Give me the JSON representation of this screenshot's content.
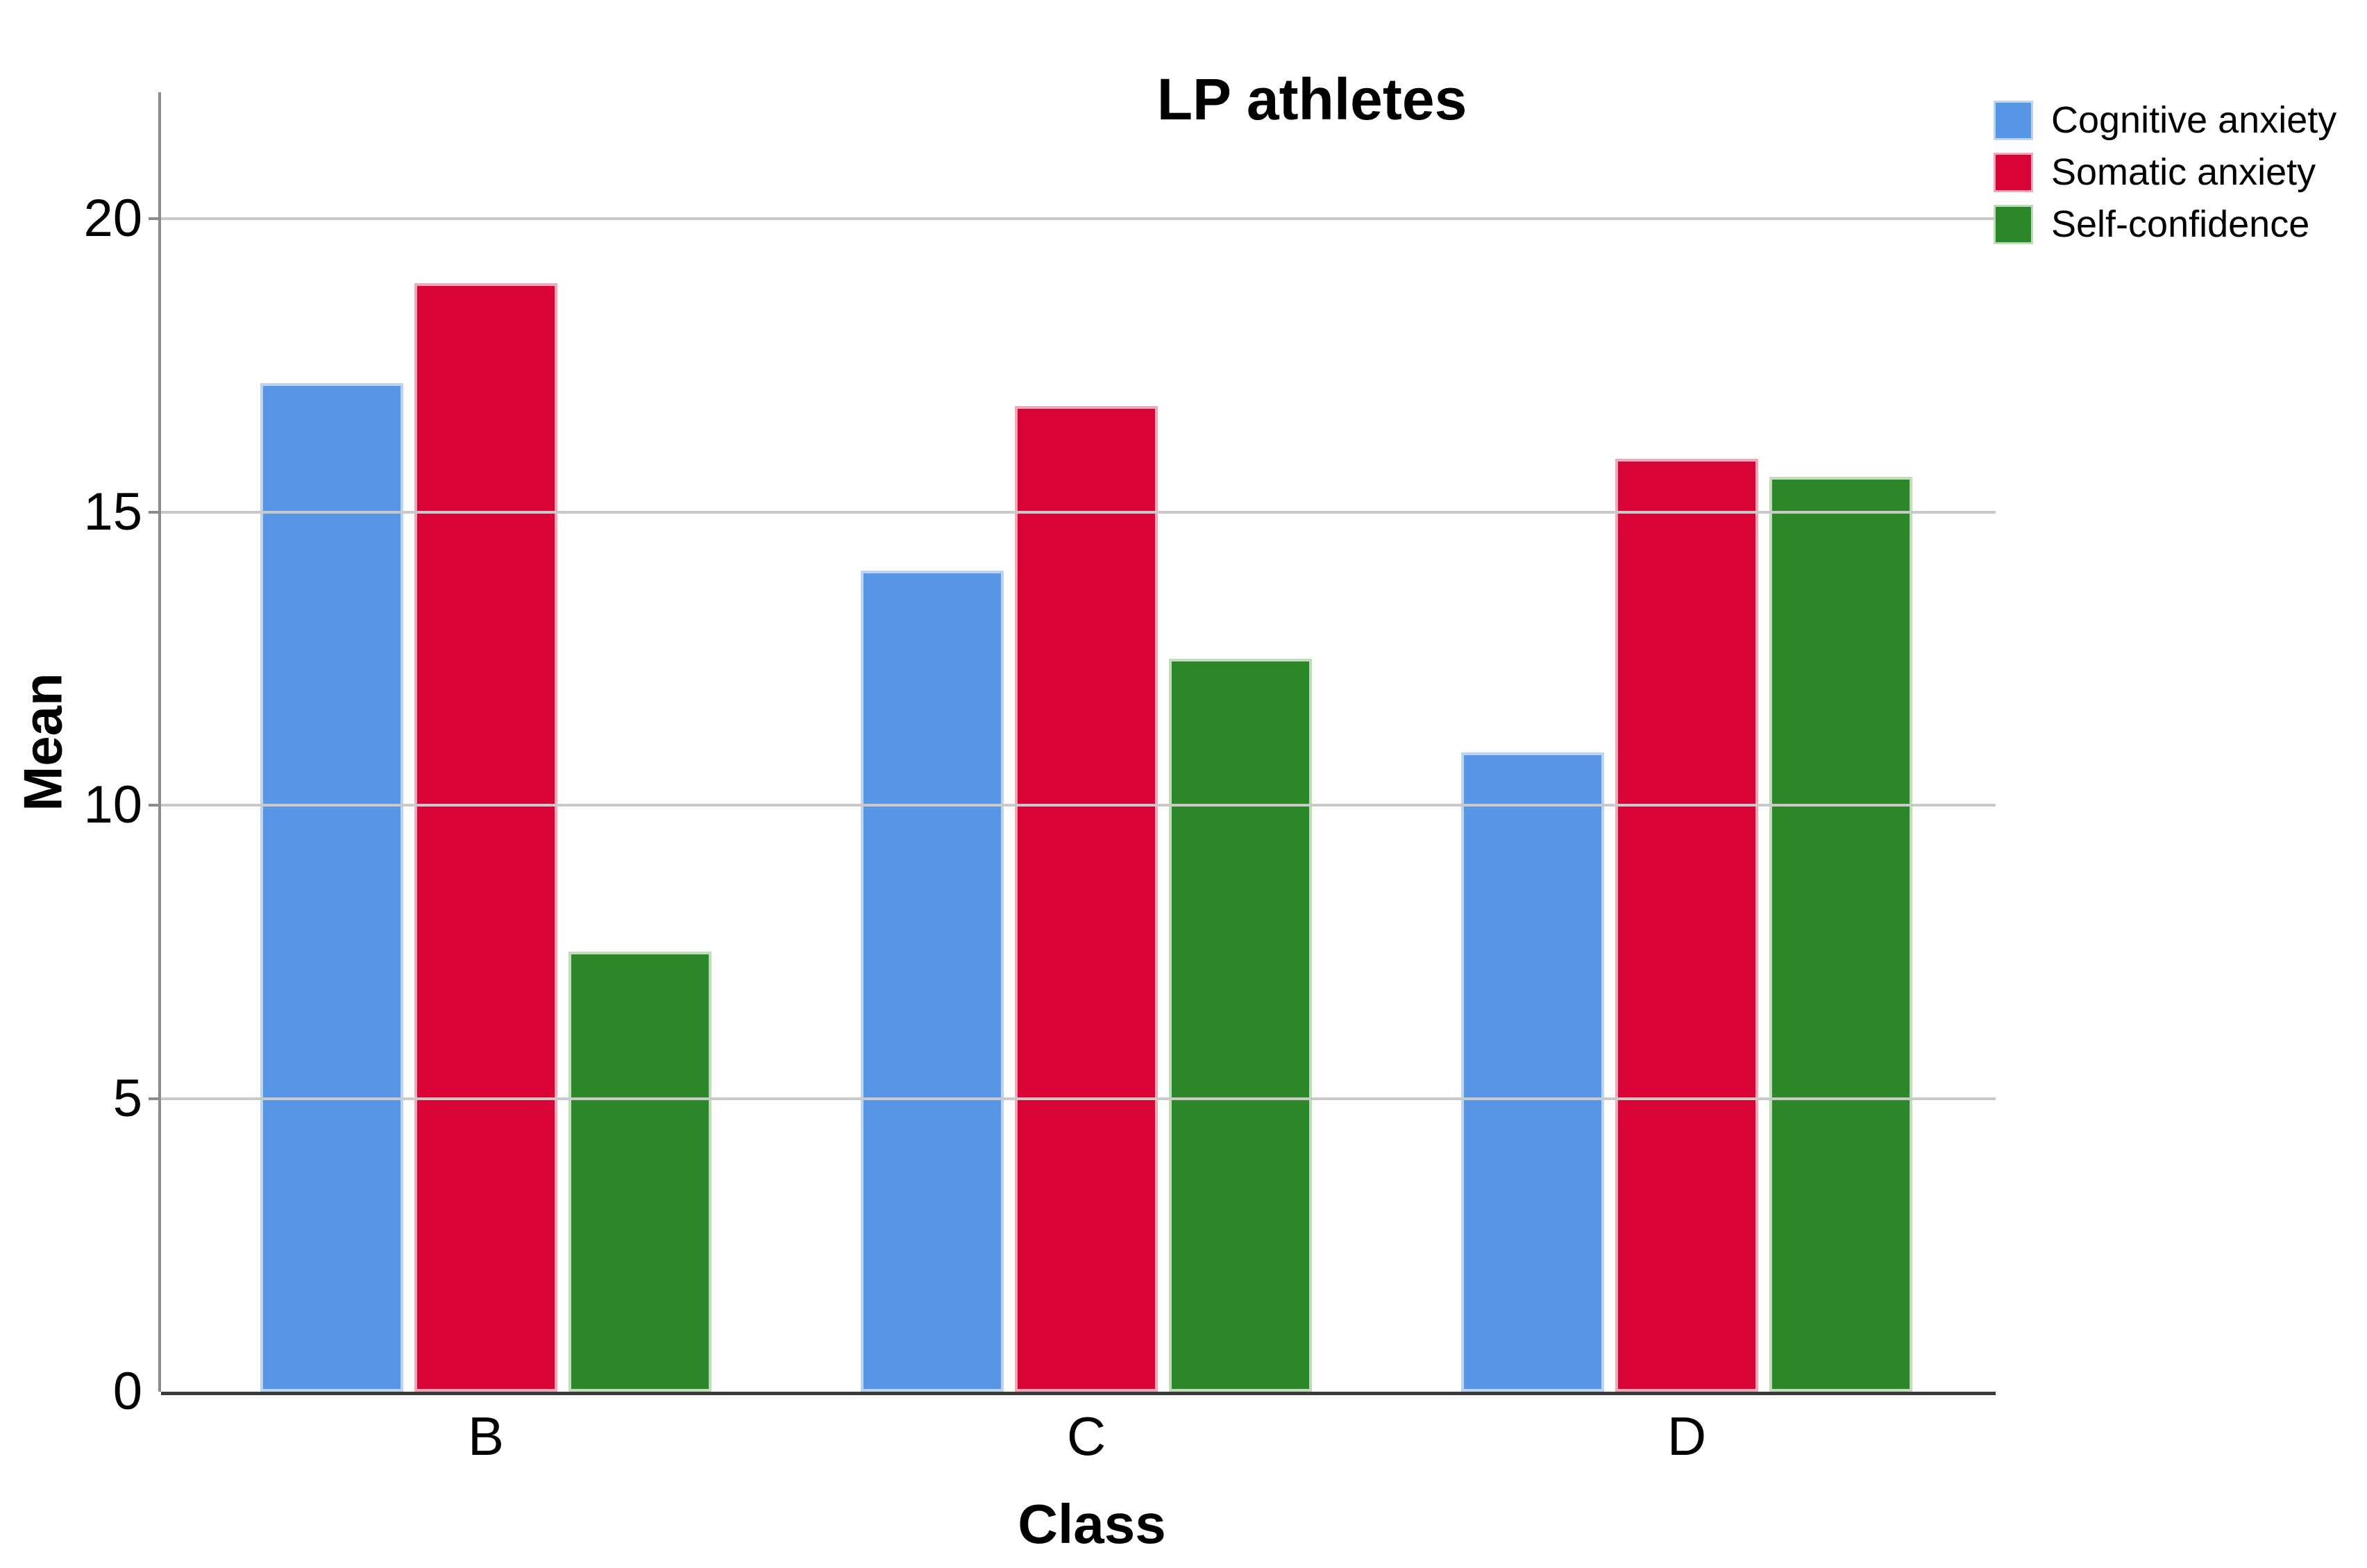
{
  "title": "LP athletes",
  "chart_data": {
    "type": "bar",
    "title": "LP athletes",
    "xlabel": "Class",
    "ylabel": "Mean",
    "categories": [
      "B",
      "C",
      "D"
    ],
    "series": [
      {
        "name": "Cognitive anxiety",
        "color": "#5796E4",
        "edge_color": "#BDD3F2",
        "values": [
          17.2,
          14.0,
          10.9
        ]
      },
      {
        "name": "Somatic anxiety",
        "color": "#D90336",
        "edge_color": "#F0A7B8",
        "values": [
          18.9,
          16.8,
          15.9
        ]
      },
      {
        "name": "Self-confidence",
        "color": "#2B8727",
        "edge_color": "#BFDDB8",
        "values": [
          7.5,
          12.5,
          15.6
        ]
      }
    ],
    "yticks": [
      0,
      5,
      10,
      15,
      20
    ],
    "ylim": [
      0,
      22.1
    ],
    "grid": "horizontal",
    "legend_position": "top-right"
  },
  "style_colors": {
    "gridline": "#c9c9c9",
    "y_axis_line": "#8c8c8c",
    "x_axis_line": "#3a3a3a",
    "text": "#000000",
    "background": "#ffffff"
  }
}
